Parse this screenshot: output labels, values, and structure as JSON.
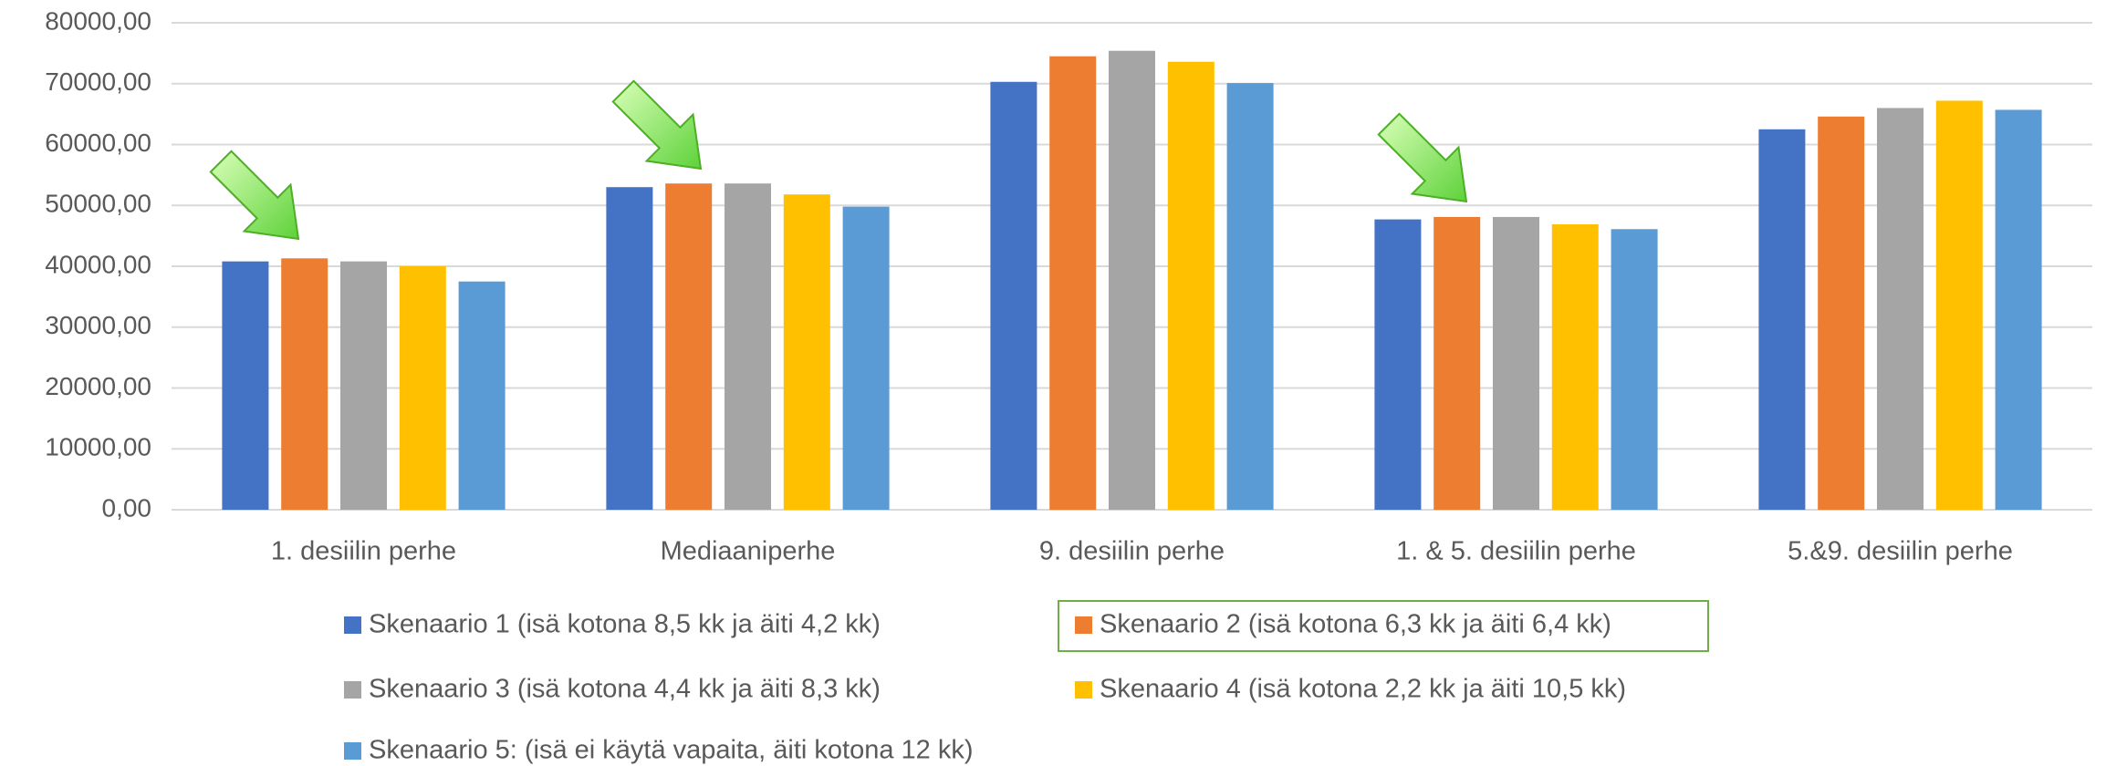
{
  "chart_data": {
    "type": "bar",
    "categories": [
      "1. desiilin perhe",
      "Mediaaniperhe",
      "9. desiilin perhe",
      "1. & 5. desiilin perhe",
      "5.&9. desiilin perhe"
    ],
    "series": [
      {
        "name": "Skenaario 1 (isä kotona 8,5 kk ja äiti 4,2 kk)",
        "color": "#4472c4",
        "values": [
          40800,
          53000,
          70300,
          47700,
          62500
        ]
      },
      {
        "name": "Skenaario 2 (isä kotona 6,3 kk ja äiti 6,4 kk)",
        "color": "#ed7d31",
        "values": [
          41300,
          53600,
          74500,
          48100,
          64600
        ]
      },
      {
        "name": "Skenaario 3 (isä kotona 4,4 kk ja äiti 8,3 kk)",
        "color": "#a5a5a5",
        "values": [
          40800,
          53600,
          75400,
          48100,
          66000
        ]
      },
      {
        "name": "Skenaario 4 (isä kotona 2,2 kk ja äiti 10,5 kk)",
        "color": "#ffc000",
        "values": [
          40000,
          51800,
          73600,
          46900,
          67200
        ]
      },
      {
        "name": "Skenaario 5: (isä ei käytä vapaita, äiti kotona 12 kk)",
        "color": "#5b9bd5",
        "values": [
          37500,
          49800,
          70100,
          46100,
          65700
        ]
      }
    ],
    "ylim": [
      0,
      80000
    ],
    "yticks": [
      {
        "value": 0,
        "label": "0,00"
      },
      {
        "value": 10000,
        "label": "10000,00"
      },
      {
        "value": 20000,
        "label": "20000,00"
      },
      {
        "value": 30000,
        "label": "30000,00"
      },
      {
        "value": 40000,
        "label": "40000,00"
      },
      {
        "value": 50000,
        "label": "50000,00"
      },
      {
        "value": 60000,
        "label": "60000,00"
      },
      {
        "value": 70000,
        "label": "70000,00"
      },
      {
        "value": 80000,
        "label": "80000,00"
      }
    ],
    "grid": true,
    "legend": "bottom"
  }
}
